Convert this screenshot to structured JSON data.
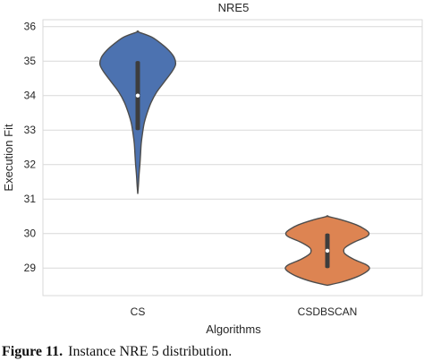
{
  "chart_data": {
    "type": "violin",
    "title": "NRE5",
    "xlabel": "Algorithms",
    "ylabel": "Execution Fit",
    "categories": [
      "CS",
      "CSDBSCAN"
    ],
    "ylim": [
      28.2,
      36.2
    ],
    "yticks": [
      29,
      30,
      31,
      32,
      33,
      34,
      35,
      36
    ],
    "grid": true,
    "series": [
      {
        "category": "CS",
        "color": "#4c72b0",
        "min": 31.15,
        "max": 35.85,
        "q1": 33,
        "median": 34,
        "q3": 35,
        "whisker_low": 33,
        "whisker_high": 35,
        "density_profile": [
          [
            31.15,
            0.0
          ],
          [
            31.4,
            0.015
          ],
          [
            31.7,
            0.03
          ],
          [
            32.0,
            0.05
          ],
          [
            32.3,
            0.065
          ],
          [
            32.6,
            0.08
          ],
          [
            32.9,
            0.11
          ],
          [
            33.2,
            0.15
          ],
          [
            33.5,
            0.22
          ],
          [
            33.8,
            0.31
          ],
          [
            34.1,
            0.44
          ],
          [
            34.4,
            0.62
          ],
          [
            34.7,
            0.8
          ],
          [
            34.9,
            0.88
          ],
          [
            35.1,
            0.85
          ],
          [
            35.3,
            0.73
          ],
          [
            35.5,
            0.55
          ],
          [
            35.7,
            0.32
          ],
          [
            35.85,
            0.0
          ]
        ]
      },
      {
        "category": "CSDBSCAN",
        "color": "#dd8452",
        "min": 28.5,
        "max": 30.5,
        "q1": 29,
        "median": 29.5,
        "q3": 30,
        "whisker_low": 29,
        "whisker_high": 30,
        "density_profile": [
          [
            28.5,
            0.0
          ],
          [
            28.6,
            0.35
          ],
          [
            28.75,
            0.7
          ],
          [
            28.9,
            0.92
          ],
          [
            29.0,
            0.98
          ],
          [
            29.1,
            0.9
          ],
          [
            29.25,
            0.62
          ],
          [
            29.4,
            0.42
          ],
          [
            29.5,
            0.38
          ],
          [
            29.6,
            0.42
          ],
          [
            29.75,
            0.62
          ],
          [
            29.9,
            0.9
          ],
          [
            30.0,
            0.97
          ],
          [
            30.1,
            0.9
          ],
          [
            30.25,
            0.68
          ],
          [
            30.4,
            0.32
          ],
          [
            30.5,
            0.0
          ]
        ]
      }
    ]
  },
  "caption": {
    "label": "Figure 11.",
    "text": "Instance NRE 5 distribution."
  }
}
